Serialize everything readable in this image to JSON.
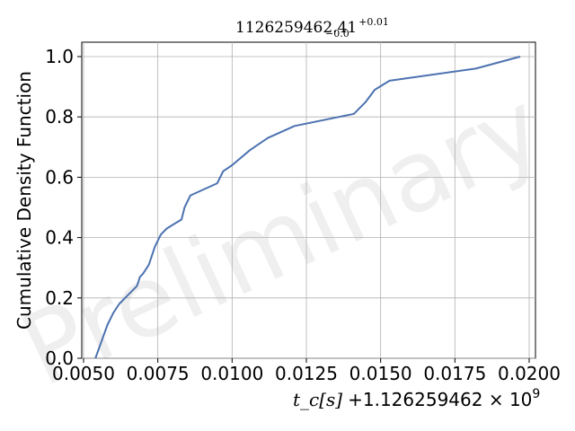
{
  "chart_data": {
    "type": "line",
    "title": "1126259462.41",
    "title_sup": "+0.01",
    "title_sub": "−0.0",
    "ylabel": "Cumulative Density Function",
    "xlabel": "t_c[s]",
    "xlabel_offset": "+1.126259462 × 10",
    "xlabel_exp": "9",
    "watermark": "Preliminary",
    "xlim": [
      0.005,
      0.02
    ],
    "ylim": [
      0.0,
      1.05
    ],
    "xticks": [
      0.005,
      0.0075,
      0.01,
      0.0125,
      0.015,
      0.0175,
      0.02
    ],
    "xtick_labels": [
      "0.0050",
      "0.0075",
      "0.0100",
      "0.0125",
      "0.0150",
      "0.0175",
      "0.0200"
    ],
    "yticks": [
      0.0,
      0.2,
      0.4,
      0.6,
      0.8,
      1.0
    ],
    "ytick_labels": [
      "0.0",
      "0.2",
      "0.4",
      "0.6",
      "0.8",
      "1.0"
    ],
    "grid": true,
    "series": [
      {
        "color": "#4c72b0",
        "x": [
          0.0054,
          0.0058,
          0.006,
          0.0062,
          0.0065,
          0.0068,
          0.0069,
          0.007,
          0.0072,
          0.0074,
          0.0076,
          0.0078,
          0.0083,
          0.0084,
          0.0086,
          0.0095,
          0.0097,
          0.01,
          0.0106,
          0.0112,
          0.0121,
          0.0141,
          0.0145,
          0.0148,
          0.0153,
          0.0182,
          0.0197
        ],
        "y": [
          0.0,
          0.11,
          0.15,
          0.18,
          0.21,
          0.24,
          0.27,
          0.28,
          0.31,
          0.37,
          0.41,
          0.43,
          0.46,
          0.5,
          0.54,
          0.58,
          0.62,
          0.64,
          0.69,
          0.73,
          0.77,
          0.81,
          0.85,
          0.89,
          0.92,
          0.96,
          1.0
        ]
      }
    ]
  }
}
